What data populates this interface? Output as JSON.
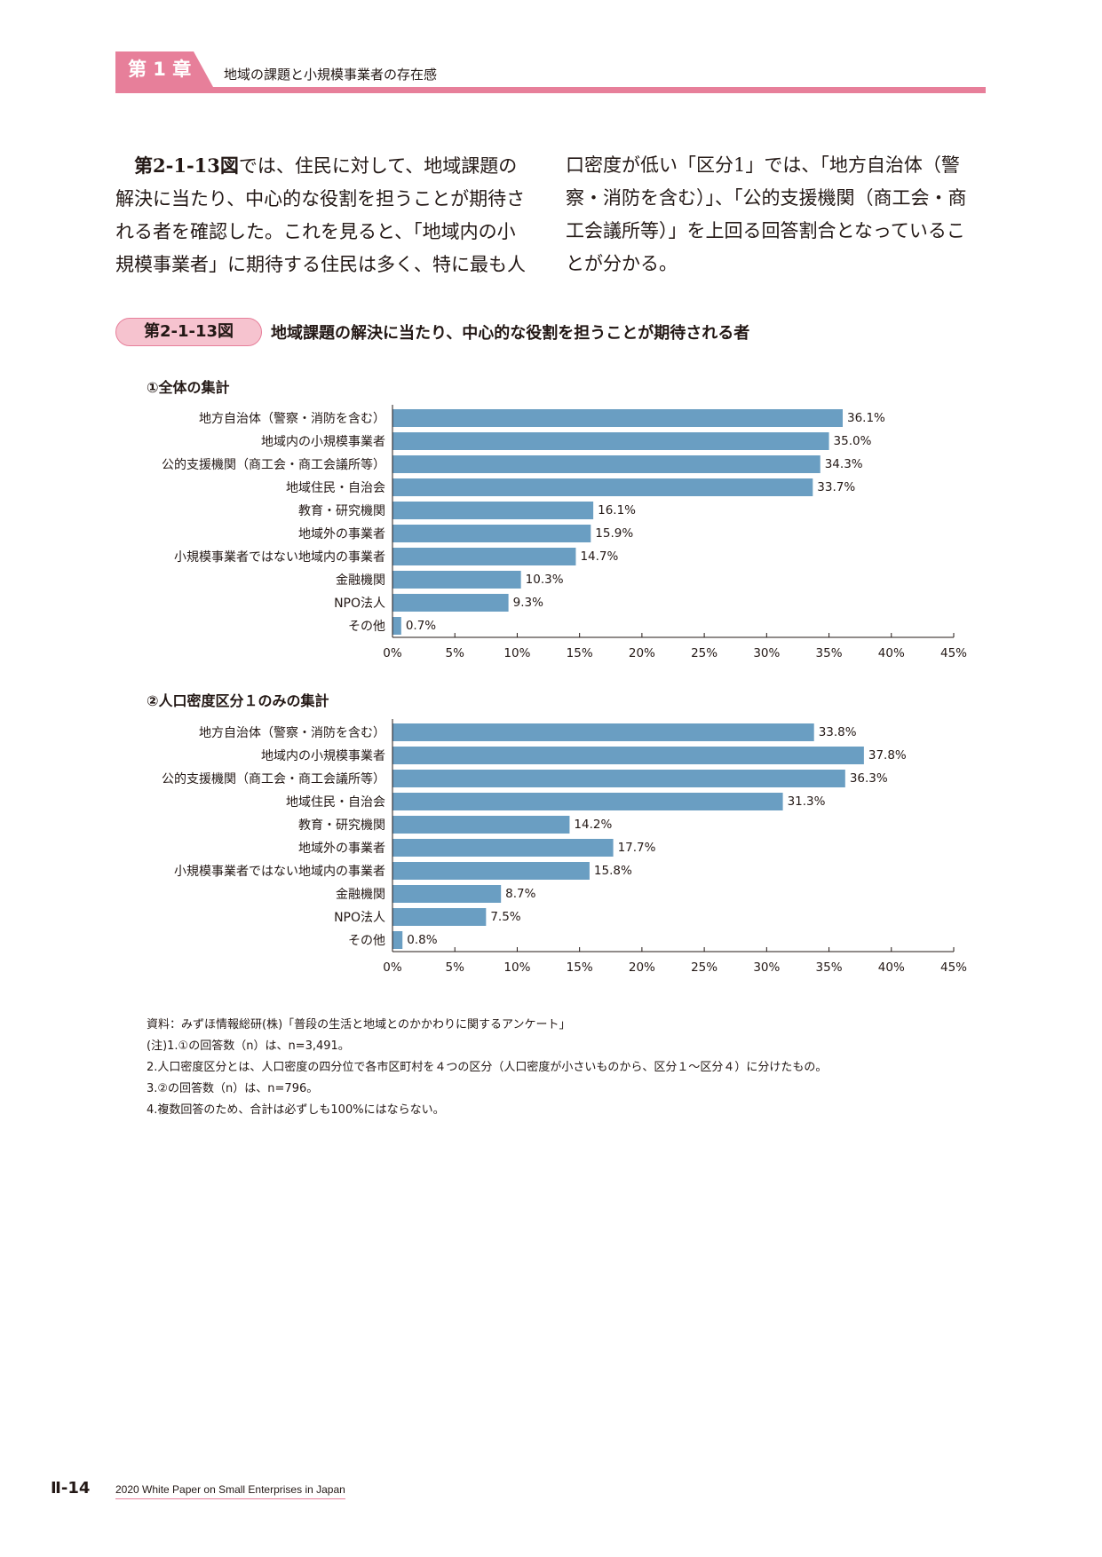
{
  "header": {
    "chapter_label": "第 1 章",
    "chapter_title": "地域の課題と小規模事業者の存在感"
  },
  "body": {
    "col1_lead": "第2-1-13図",
    "col1_rest": "では、住民に対して、地域課題の解決に当たり、中心的な役割を担うことが期待される者を確認した。これを見ると、「地域内の小規模事業者」に期待する住民は多く、特に最も人",
    "col2": "口密度が低い「区分1」では、「地方自治体（警察・消防を含む）」、「公的支援機関（商工会・商工会議所等）」を上回る回答割合となっていることが分かる。"
  },
  "figure": {
    "number": "第2-1-13図",
    "title": "地域課題の解決に当たり、中心的な役割を担うことが期待される者"
  },
  "colors": {
    "accent": "#e77f9a",
    "bar": "#6a9ec2"
  },
  "chart_data": [
    {
      "type": "bar",
      "orientation": "horizontal",
      "title": "①全体の集計",
      "categories": [
        "地方自治体（警察・消防を含む）",
        "地域内の小規模事業者",
        "公的支援機関（商工会・商工会議所等）",
        "地域住民・自治会",
        "教育・研究機関",
        "地域外の事業者",
        "小規模事業者ではない地域内の事業者",
        "金融機関",
        "NPO法人",
        "その他"
      ],
      "values": [
        36.1,
        35.0,
        34.3,
        33.7,
        16.1,
        15.9,
        14.7,
        10.3,
        9.3,
        0.7
      ],
      "value_labels": [
        "36.1%",
        "35.0%",
        "34.3%",
        "33.7%",
        "16.1%",
        "15.9%",
        "14.7%",
        "10.3%",
        "9.3%",
        "0.7%"
      ],
      "xlim": [
        0,
        45
      ],
      "xticks": [
        "0%",
        "5%",
        "10%",
        "15%",
        "20%",
        "25%",
        "30%",
        "35%",
        "40%",
        "45%"
      ],
      "grid": false
    },
    {
      "type": "bar",
      "orientation": "horizontal",
      "title": "②人口密度区分１のみの集計",
      "categories": [
        "地方自治体（警察・消防を含む）",
        "地域内の小規模事業者",
        "公的支援機関（商工会・商工会議所等）",
        "地域住民・自治会",
        "教育・研究機関",
        "地域外の事業者",
        "小規模事業者ではない地域内の事業者",
        "金融機関",
        "NPO法人",
        "その他"
      ],
      "values": [
        33.8,
        37.8,
        36.3,
        31.3,
        14.2,
        17.7,
        15.8,
        8.7,
        7.5,
        0.8
      ],
      "value_labels": [
        "33.8%",
        "37.8%",
        "36.3%",
        "31.3%",
        "14.2%",
        "17.7%",
        "15.8%",
        "8.7%",
        "7.5%",
        "0.8%"
      ],
      "xlim": [
        0,
        45
      ],
      "xticks": [
        "0%",
        "5%",
        "10%",
        "15%",
        "20%",
        "25%",
        "30%",
        "35%",
        "40%",
        "45%"
      ],
      "grid": false
    }
  ],
  "notes": [
    "資料：みずほ情報総研(株)「普段の生活と地域とのかかわりに関するアンケート」",
    "(注)1.①の回答数（n）は、n=3,491。",
    "2.人口密度区分とは、人口密度の四分位で各市区町村を４つの区分（人口密度が小さいものから、区分１～区分４）に分けたもの。",
    "3.②の回答数（n）は、n=796。",
    "4.複数回答のため、合計は必ずしも100%にはならない。"
  ],
  "footer": {
    "page_number": "Ⅱ-14",
    "publication": "2020 White Paper on Small Enterprises in Japan"
  }
}
